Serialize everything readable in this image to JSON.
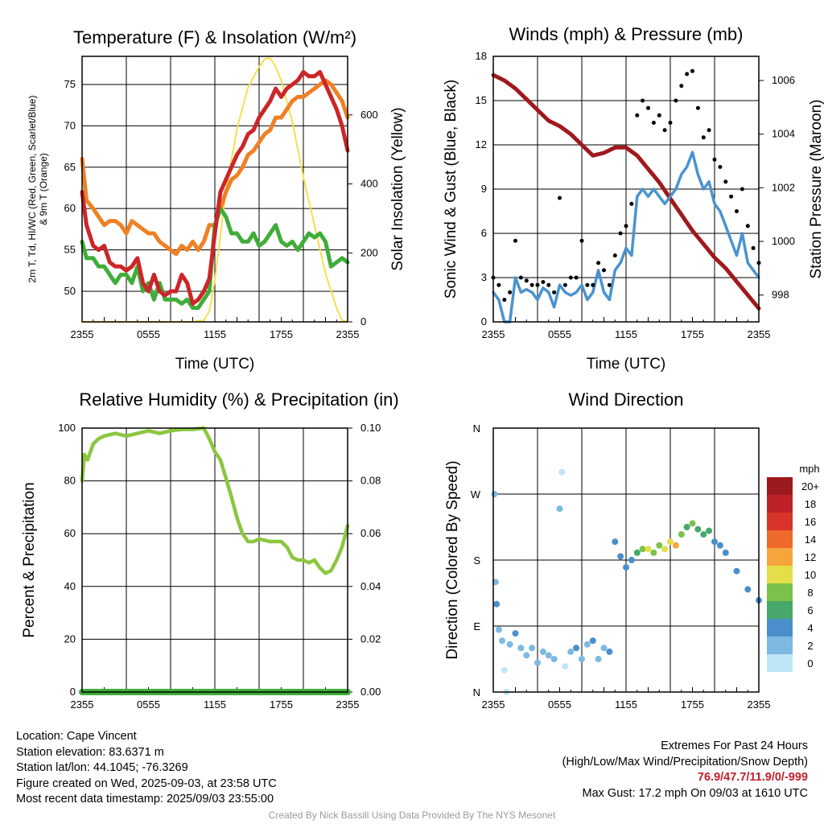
{
  "panels": {
    "temp": {
      "title": "Temperature (F) & Insolation (W/m²)",
      "xlabel": "Time (UTC)",
      "ylabel_left_line1": "2m T, Td, HI/WC (Red, Green, Scarlet/Blue)",
      "ylabel_left_line2": "& 9m T (Orange)",
      "ylabel_right": "Solar Insolation (Yellow)"
    },
    "wind": {
      "title": "Winds (mph) & Pressure (mb)",
      "xlabel": "Time (UTC)",
      "ylabel_left": "Sonic Wind & Gust (Blue, Black)",
      "ylabel_right": "Station Pressure (Maroon)"
    },
    "rh": {
      "title": "Relative Humidity (%) & Precipitation (in)",
      "ylabel_left": "Percent & Precipitation"
    },
    "dir": {
      "title": "Wind Direction",
      "ylabel_left": "Direction (Colored By Speed)",
      "legend_title": "mph"
    }
  },
  "chart_data": [
    {
      "id": "temp",
      "type": "line",
      "x_tick_labels": [
        "2355",
        "0555",
        "1155",
        "1755",
        "2355"
      ],
      "x_range_hours": [
        0,
        24
      ],
      "ylim": [
        46.3,
        78.4
      ],
      "y_ticks": [
        50,
        55,
        60,
        65,
        70,
        75
      ],
      "y2lim": [
        0,
        770
      ],
      "y2_ticks": [
        0,
        200,
        400,
        600
      ],
      "colors": {
        "temp": "#cc2528",
        "dewpoint": "#3fad3a",
        "heat_index": "#cc2528",
        "temp_9m": "#f08024",
        "insolation": "#f7e04a"
      },
      "series": [
        {
          "name": "2m T",
          "x": [
            0,
            0.4,
            1,
            1.5,
            2,
            2.5,
            3,
            3.5,
            4,
            4.5,
            5,
            5.5,
            6,
            6.5,
            7,
            7.5,
            8,
            8.5,
            9,
            9.5,
            10,
            10.5,
            11,
            11.5,
            12,
            12.5,
            13,
            13.5,
            14,
            14.5,
            15,
            15.5,
            16,
            16.5,
            17,
            17.5,
            18,
            18.5,
            19,
            19.5,
            20,
            20.5,
            21,
            21.5,
            22,
            22.5,
            23,
            23.5,
            24
          ],
          "values": [
            62,
            58,
            55.5,
            55,
            55.5,
            53.5,
            53,
            53,
            52.5,
            53,
            54,
            51,
            50,
            52,
            50,
            49.5,
            50,
            50,
            52,
            51,
            48.5,
            49,
            50,
            51.5,
            57,
            62,
            63.5,
            65,
            66.5,
            67.5,
            69,
            69.5,
            71,
            72,
            73,
            74.5,
            73.5,
            74.5,
            75,
            75.5,
            76.5,
            76,
            76,
            76.5,
            75,
            73.5,
            72,
            70,
            67
          ]
        },
        {
          "name": "Td",
          "x": [
            0,
            0.4,
            1,
            1.5,
            2,
            2.5,
            3,
            3.5,
            4,
            4.5,
            5,
            5.5,
            6,
            6.5,
            7,
            7.5,
            8,
            8.5,
            9,
            9.5,
            10,
            10.5,
            11,
            11.5,
            12,
            12.5,
            13,
            13.5,
            14,
            14.5,
            15,
            15.5,
            16,
            16.5,
            17,
            17.5,
            18,
            18.5,
            19,
            19.5,
            20,
            20.5,
            21,
            21.5,
            22,
            22.5,
            23,
            23.5,
            24
          ],
          "values": [
            56,
            54,
            54,
            53,
            53,
            52,
            51,
            52,
            52,
            51,
            53,
            50,
            51,
            49,
            51,
            49,
            49,
            49,
            48.5,
            49,
            48,
            48,
            49,
            50,
            58,
            60,
            59,
            57,
            57,
            56,
            56,
            57,
            55.5,
            56,
            57,
            58,
            56,
            55.5,
            56,
            55,
            56,
            57,
            56.5,
            57,
            56,
            53,
            53.5,
            54,
            53.5
          ]
        },
        {
          "name": "9m T",
          "x": [
            0,
            0.4,
            1,
            1.5,
            2,
            2.5,
            3,
            3.5,
            4,
            4.5,
            5,
            5.5,
            6,
            6.5,
            7,
            7.5,
            8,
            8.5,
            9,
            9.5,
            10,
            10.5,
            11,
            11.5,
            12,
            12.5,
            13,
            13.5,
            14,
            14.5,
            15,
            15.5,
            16,
            16.5,
            17,
            17.5,
            18,
            18.5,
            19,
            19.5,
            20,
            20.5,
            21,
            21.5,
            22,
            22.5,
            23,
            23.5,
            24
          ],
          "values": [
            66,
            61,
            60,
            59,
            58,
            58.5,
            58.5,
            58,
            57,
            58.5,
            58,
            57.5,
            57,
            57,
            56,
            55.5,
            55,
            54.5,
            55.5,
            55,
            56,
            55,
            56,
            58,
            58,
            60,
            62,
            63.5,
            64,
            65,
            66.5,
            67,
            68,
            69,
            69.5,
            71,
            71,
            72,
            73,
            73.5,
            73.5,
            74,
            74.5,
            75,
            75.5,
            75,
            74,
            73,
            71
          ]
        },
        {
          "name": "Solar Insolation",
          "axis": "right",
          "x": [
            0,
            9,
            10,
            11,
            11.5,
            12,
            13,
            14,
            15,
            16,
            16.5,
            17,
            17.5,
            18,
            19,
            20,
            21,
            22,
            23,
            23.5,
            24
          ],
          "values": [
            0,
            0,
            0,
            5,
            30,
            120,
            380,
            560,
            680,
            740,
            762,
            765,
            740,
            700,
            580,
            420,
            280,
            140,
            40,
            5,
            0
          ]
        }
      ]
    },
    {
      "id": "wind",
      "type": "line",
      "x_tick_labels": [
        "2355",
        "0555",
        "1155",
        "1755",
        "2355"
      ],
      "x_range_hours": [
        0,
        24
      ],
      "ylim": [
        0,
        18
      ],
      "y_ticks": [
        0,
        3,
        6,
        9,
        12,
        15,
        18
      ],
      "y2lim": [
        997,
        1006.9
      ],
      "y2_ticks": [
        998,
        1000,
        1002,
        1004,
        1006
      ],
      "colors": {
        "wind": "#4a93d0",
        "gust": "#000000",
        "pressure": "#a0191c"
      },
      "series": [
        {
          "name": "Sonic Wind",
          "x": [
            0,
            0.5,
            1,
            1.5,
            2,
            2.5,
            3,
            3.5,
            4,
            4.5,
            5,
            5.5,
            6,
            6.5,
            7,
            7.5,
            8,
            8.5,
            9,
            9.5,
            10,
            10.5,
            11,
            11.5,
            12,
            12.5,
            13,
            13.5,
            14,
            14.5,
            15,
            15.5,
            16,
            16.5,
            17,
            17.5,
            18,
            18.5,
            19,
            19.5,
            20,
            20.5,
            21,
            21.5,
            22,
            22.5,
            23,
            23.5,
            24
          ],
          "values": [
            2,
            1.5,
            0,
            0,
            3,
            2,
            2.2,
            2,
            1.5,
            2.3,
            2,
            1,
            2.5,
            2,
            1.8,
            2,
            2.5,
            1.5,
            2,
            3.5,
            2,
            1.5,
            3.5,
            4,
            5,
            4.5,
            8.5,
            9,
            8.5,
            9,
            8.5,
            8,
            8.5,
            9,
            10,
            10.5,
            11.5,
            10,
            9,
            9.5,
            8,
            7.5,
            6.5,
            5.5,
            4.5,
            6,
            4,
            3.5,
            3
          ]
        },
        {
          "name": "Gust",
          "type": "scatter",
          "x": [
            0,
            0.5,
            1,
            1.5,
            2,
            2.5,
            3,
            3.5,
            4,
            4.5,
            5,
            5.5,
            6,
            6.5,
            7,
            7.5,
            8,
            8.5,
            9,
            9.5,
            10,
            10.5,
            11,
            11.5,
            12,
            12.5,
            13,
            13.5,
            14,
            14.5,
            15,
            15.5,
            16,
            16.5,
            17,
            17.5,
            18,
            18.5,
            19,
            19.5,
            20,
            20.5,
            21,
            21.5,
            22,
            22.5,
            23,
            23.5,
            24
          ],
          "values": [
            3,
            2.5,
            1.5,
            2,
            5.5,
            3,
            2.8,
            2.5,
            2.5,
            2.7,
            2.5,
            2,
            8.4,
            2.5,
            3,
            3,
            5.5,
            2.5,
            2.5,
            4,
            3.5,
            2.5,
            4.5,
            6,
            6.5,
            8,
            14,
            15,
            14.5,
            13.5,
            14,
            13,
            13.5,
            15,
            16,
            16.8,
            17,
            14.5,
            12.5,
            13,
            11,
            10.5,
            9.5,
            8.5,
            7.5,
            9,
            6.5,
            5,
            4
          ]
        },
        {
          "name": "Station Pressure",
          "axis": "right",
          "x": [
            0,
            1,
            2,
            3,
            4,
            5,
            6,
            7,
            8,
            9,
            10,
            11,
            12,
            13,
            14,
            15,
            16,
            17,
            18,
            19,
            20,
            21,
            22,
            23,
            24
          ],
          "values": [
            1006.2,
            1006.0,
            1005.7,
            1005.3,
            1004.9,
            1004.5,
            1004.3,
            1004.0,
            1003.6,
            1003.2,
            1003.3,
            1003.5,
            1003.5,
            1003.2,
            1002.7,
            1002.2,
            1001.6,
            1001.0,
            1000.4,
            999.9,
            999.4,
            999.0,
            998.5,
            998.0,
            997.5
          ]
        }
      ]
    },
    {
      "id": "rh",
      "type": "line",
      "x_tick_labels": [
        "2355",
        "0555",
        "1155",
        "1755",
        "2355"
      ],
      "x_range_hours": [
        0,
        24
      ],
      "ylim": [
        0,
        100
      ],
      "y_ticks": [
        0,
        20,
        40,
        60,
        80,
        100
      ],
      "y2lim": [
        0,
        0.1
      ],
      "y2_ticks": [
        "0.00",
        "0.02",
        "0.04",
        "0.06",
        "0.08",
        "0.10"
      ],
      "colors": {
        "rh": "#8cc63f",
        "precip": "#3fad3a"
      },
      "series": [
        {
          "name": "Relative Humidity",
          "x": [
            0,
            0.2,
            0.5,
            1,
            1.5,
            2,
            3,
            4,
            5,
            6,
            7,
            8,
            9,
            10,
            11,
            11.5,
            12,
            12.5,
            13,
            13.5,
            14,
            14.5,
            15,
            15.5,
            16,
            17,
            18,
            18.5,
            19,
            19.5,
            20,
            20.5,
            21,
            21.5,
            22,
            22.5,
            23,
            23.5,
            24
          ],
          "values": [
            80,
            90,
            88,
            94,
            96,
            97,
            98,
            97,
            98,
            99,
            98,
            99,
            99.5,
            99.5,
            100,
            96,
            91,
            88,
            81,
            74,
            66,
            60,
            57,
            57,
            58,
            57,
            57,
            55,
            51,
            50,
            50,
            49,
            50,
            47,
            45,
            46,
            50,
            55,
            63
          ]
        },
        {
          "name": "Precipitation",
          "axis": "right",
          "x": [
            0,
            24
          ],
          "values": [
            0,
            0
          ]
        }
      ]
    },
    {
      "id": "dir",
      "type": "scatter",
      "x_tick_labels": [
        "2355",
        "0555",
        "1155",
        "1755",
        "2355"
      ],
      "y_tick_labels": [
        "N",
        "E",
        "S",
        "W",
        "N"
      ],
      "ylim": [
        0,
        360
      ],
      "legend": {
        "labels": [
          "0",
          "2",
          "4",
          "6",
          "8",
          "10",
          "12",
          "14",
          "16",
          "18",
          "20+"
        ],
        "colors": [
          "#bfe6f7",
          "#7db9e2",
          "#4a8fcc",
          "#46a86a",
          "#7ac24a",
          "#e4de49",
          "#f5a53c",
          "#ef6a2a",
          "#d8342b",
          "#bd2128",
          "#9a1a1e"
        ]
      },
      "points": [
        [
          0.1,
          270,
          2
        ],
        [
          0.2,
          150,
          2
        ],
        [
          0.3,
          120,
          4
        ],
        [
          0.5,
          85,
          2
        ],
        [
          0.8,
          70,
          2
        ],
        [
          1,
          30,
          0
        ],
        [
          1.2,
          0,
          0
        ],
        [
          1.5,
          65,
          2
        ],
        [
          2,
          80,
          4
        ],
        [
          2.5,
          60,
          2
        ],
        [
          3,
          50,
          2
        ],
        [
          3.5,
          60,
          2
        ],
        [
          4,
          40,
          2
        ],
        [
          4.5,
          55,
          2
        ],
        [
          5,
          50,
          2
        ],
        [
          5.5,
          45,
          2
        ],
        [
          6,
          250,
          2
        ],
        [
          6.2,
          300,
          0
        ],
        [
          6.5,
          35,
          0
        ],
        [
          7,
          55,
          2
        ],
        [
          7.5,
          60,
          4
        ],
        [
          8,
          45,
          2
        ],
        [
          8.5,
          65,
          2
        ],
        [
          9,
          70,
          4
        ],
        [
          9.5,
          45,
          2
        ],
        [
          10,
          60,
          2
        ],
        [
          10.5,
          55,
          4
        ],
        [
          11,
          205,
          4
        ],
        [
          11.5,
          185,
          4
        ],
        [
          12,
          170,
          4
        ],
        [
          12.5,
          180,
          4
        ],
        [
          13,
          190,
          6
        ],
        [
          13.5,
          195,
          8
        ],
        [
          14,
          195,
          10
        ],
        [
          14.5,
          190,
          8
        ],
        [
          15,
          200,
          8
        ],
        [
          15.5,
          195,
          10
        ],
        [
          16,
          205,
          10
        ],
        [
          16.5,
          200,
          12
        ],
        [
          17,
          215,
          8
        ],
        [
          17.5,
          225,
          6
        ],
        [
          18,
          230,
          8
        ],
        [
          18.5,
          222,
          6
        ],
        [
          19,
          215,
          6
        ],
        [
          19.5,
          220,
          6
        ],
        [
          20,
          205,
          4
        ],
        [
          20.5,
          200,
          4
        ],
        [
          21,
          190,
          4
        ],
        [
          22,
          165,
          4
        ],
        [
          23,
          140,
          4
        ],
        [
          24,
          125,
          4
        ]
      ]
    }
  ],
  "info": {
    "location": "Location: Cape Vincent",
    "elevation": "Station elevation: 83.6371 m",
    "latlon": "Station lat/lon: 44.1045; -76.3269",
    "created": "Figure created on Wed, 2025-09-03, at 23:58 UTC",
    "recent": "Most recent data timestamp: 2025/09/03 23:55:00",
    "extremes_title": "Extremes For Past 24 Hours",
    "extremes_sub": "(High/Low/Max Wind/Precipitation/Snow Depth)",
    "extremes_values": "76.9/47.7/11.9/0/-999",
    "max_gust": "Max Gust: 17.2 mph On 09/03 at 1610 UTC"
  },
  "credit": "Created By Nick Bassill Using Data Provided By The NYS Mesonet"
}
